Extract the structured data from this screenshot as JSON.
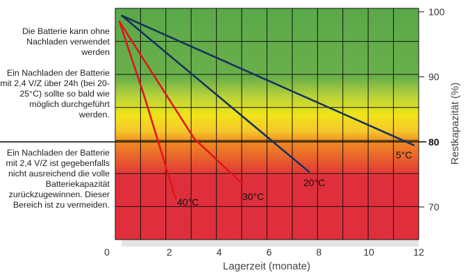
{
  "notes": [
    "Die Batterie kann ohne Nachladen verwendet werden",
    "Ein Nachladen der Batterie mit 2,4 V/Z über 24h (bei 20-25°C) sollte so bald wie möglich durchgeführt werden.",
    "Ein Nachladen der Batterie mit 2,4 V/Z ist gegebenfalls nicht ausreichend die volle Batteriekapazität zurückzugewinnen. Dieser Bereich ist zu vermeiden."
  ],
  "chart_data": {
    "type": "line",
    "xlabel": "Lagerzeit (monate)",
    "ylabel": "Restkapazität (%)",
    "xlim": [
      0,
      12
    ],
    "ylim": [
      63,
      100
    ],
    "x_ticks": [
      0,
      2,
      4,
      6,
      8,
      10,
      12
    ],
    "x_tick_labels": [
      "0",
      "2",
      "4",
      "6",
      "8",
      "10",
      "12"
    ],
    "y_ticks": [
      70,
      80,
      90,
      100
    ],
    "y_tick_labels": [
      "70",
      "80",
      "90",
      "100"
    ],
    "reference_line": 80,
    "grid": true,
    "background_zones": [
      {
        "from": 100,
        "to": 86,
        "color": "#5aa84a"
      },
      {
        "from": 86,
        "to": 80,
        "color": "#f0e418"
      },
      {
        "from": 80,
        "to": 74,
        "color": "#ef8a22"
      },
      {
        "from": 74,
        "to": 63,
        "color": "#e02f3c"
      }
    ],
    "series": [
      {
        "name": "5°C",
        "color": "#16325c",
        "x": [
          0.1,
          11.8
        ],
        "y": [
          99.4,
          79.5
        ]
      },
      {
        "name": "20°C",
        "color": "#16325c",
        "x": [
          0.1,
          7.6
        ],
        "y": [
          99.4,
          75.4
        ]
      },
      {
        "name": "30°C",
        "color": "#e3141d",
        "x": [
          0.0,
          3.0,
          4.95
        ],
        "y": [
          98.5,
          80.5,
          73.5
        ]
      },
      {
        "name": "40°C",
        "color": "#e3141d",
        "x": [
          0.0,
          1.0,
          2.25
        ],
        "y": [
          98.5,
          87.0,
          71.3
        ]
      }
    ]
  }
}
